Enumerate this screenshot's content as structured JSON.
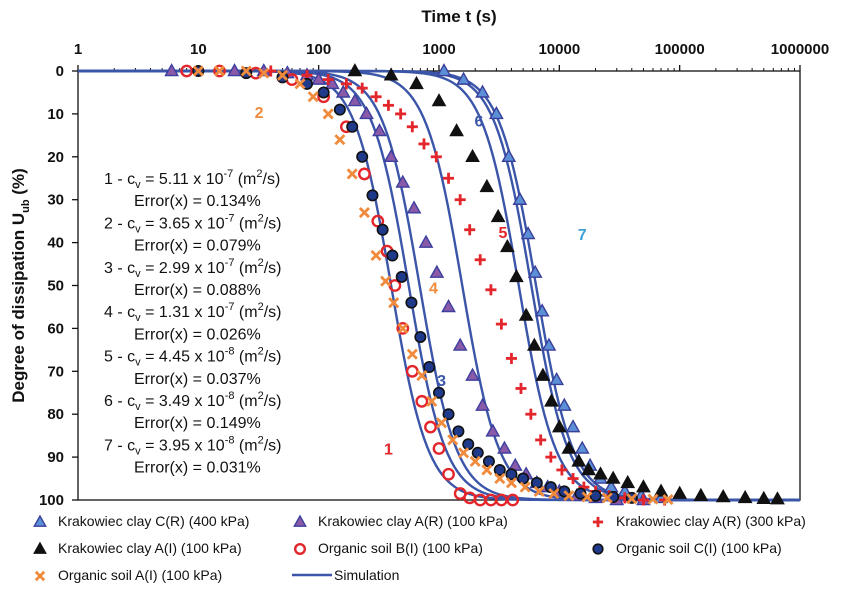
{
  "chart_data": {
    "type": "scatter",
    "title": "",
    "xlabel": "Time t (s)",
    "ylabel_main": "Degree of dissipation U",
    "ylabel_sub": "ub",
    "ylabel_unit": " (%)",
    "x_scale": "log",
    "xlim": [
      1,
      1000000
    ],
    "ylim": [
      0,
      100
    ],
    "y_inverted": true,
    "x_ticks": [
      1,
      10,
      100,
      1000,
      10000,
      100000,
      1000000
    ],
    "x_tick_labels": [
      "1",
      "10",
      "100",
      "1000",
      "10000",
      "100000",
      "1000000"
    ],
    "y_ticks": [
      0,
      10,
      20,
      30,
      40,
      50,
      60,
      70,
      80,
      90,
      100
    ],
    "y_tick_labels": [
      "0",
      "10",
      "20",
      "30",
      "40",
      "50",
      "60",
      "70",
      "80",
      "90",
      "100"
    ],
    "grid": false,
    "legend_position": "bottom",
    "series": [
      {
        "name": "Krakowiec clay C(R) (400 kPa)",
        "marker": "triangle",
        "fill": "#5b8fd6",
        "stroke": "#3a3f9a",
        "x": [
          1100,
          1600,
          2300,
          3000,
          3800,
          4700,
          5500,
          6300,
          7200,
          8200,
          9500,
          11000,
          13000,
          15500,
          18000,
          22000,
          27000,
          35000,
          48000,
          70000
        ],
        "y": [
          0,
          2,
          5,
          10,
          20,
          30,
          38,
          47,
          56,
          64,
          72,
          78,
          83,
          88,
          92,
          95,
          97,
          98,
          99,
          99.5
        ]
      },
      {
        "name": "Krakowiec clay A(R) (100 kPa)",
        "marker": "triangle",
        "fill": "#8a5aa8",
        "stroke": "#3b3f9e",
        "x": [
          6,
          20,
          35,
          55,
          80,
          100,
          130,
          160,
          200,
          250,
          320,
          400,
          500,
          620,
          780,
          960,
          1200,
          1500,
          1900,
          2300,
          2800,
          3500,
          4300,
          5300,
          6500,
          8000,
          10000,
          14000,
          20000,
          30000,
          50000
        ],
        "y": [
          0,
          0,
          0,
          0.5,
          1,
          2,
          3,
          5,
          7,
          10,
          14,
          20,
          26,
          32,
          40,
          47,
          55,
          64,
          71,
          78,
          84,
          88,
          92,
          94,
          96,
          97,
          98,
          99,
          99.5,
          100,
          100
        ]
      },
      {
        "name": "Krakowiec clay A(R) (300 kPa)",
        "marker": "plus",
        "fill": "#e3262b",
        "stroke": "#e3262b",
        "x": [
          40,
          80,
          120,
          170,
          230,
          300,
          380,
          480,
          600,
          750,
          950,
          1200,
          1500,
          1800,
          2200,
          2700,
          3300,
          4000,
          4800,
          5800,
          7000,
          8500,
          10500,
          13000,
          16000,
          20000,
          26000,
          35000,
          50000,
          75000
        ],
        "y": [
          0,
          1,
          2,
          3,
          4,
          6,
          8,
          10,
          13,
          17,
          20,
          25,
          30,
          37,
          44,
          51,
          59,
          67,
          74,
          80,
          86,
          90,
          93,
          95,
          97,
          98,
          99,
          99.5,
          100,
          100
        ]
      },
      {
        "name": "Krakowiec clay A(I) (100 kPa)",
        "marker": "triangle",
        "fill": "#111111",
        "stroke": "#111111",
        "x": [
          200,
          400,
          650,
          1000,
          1400,
          1900,
          2500,
          3100,
          3700,
          4400,
          5300,
          6200,
          7300,
          8600,
          10000,
          12000,
          14500,
          17500,
          22000,
          28000,
          37000,
          50000,
          70000,
          100000,
          150000,
          230000,
          350000,
          500000,
          650000
        ],
        "y": [
          0,
          1,
          3,
          7,
          14,
          20,
          27,
          34,
          41,
          48,
          57,
          64,
          71,
          77,
          83,
          88,
          91,
          93,
          94,
          95,
          96,
          97,
          98,
          98.5,
          99,
          99.3,
          99.5,
          99.7,
          99.8
        ]
      },
      {
        "name": "Organic soil B(I) (100 kPa)",
        "marker": "circle",
        "fill": "none",
        "stroke": "#e3262b",
        "x": [
          8,
          15,
          30,
          60,
          110,
          170,
          240,
          310,
          370,
          430,
          500,
          600,
          720,
          850,
          1000,
          1200,
          1500,
          1800,
          2200,
          2700,
          3300,
          4100
        ],
        "y": [
          0,
          0,
          0.5,
          2,
          6,
          13,
          24,
          35,
          42,
          50,
          60,
          70,
          77,
          83,
          88,
          94,
          98.5,
          99.5,
          100,
          100,
          100,
          100
        ]
      },
      {
        "name": "Organic soil C(I) (100 kPa)",
        "marker": "circle",
        "fill": "#1f3a8a",
        "stroke": "#111111",
        "x": [
          10,
          25,
          50,
          80,
          110,
          150,
          190,
          230,
          280,
          340,
          410,
          490,
          590,
          700,
          830,
          1000,
          1200,
          1450,
          1750,
          2100,
          2600,
          3200,
          4000,
          5000,
          6500,
          8500,
          11000,
          15000,
          20000,
          28000,
          40000
        ],
        "y": [
          0,
          0.5,
          1.5,
          3,
          5,
          9,
          13,
          20,
          29,
          37,
          43,
          48,
          54,
          62,
          69,
          75,
          80,
          84,
          87,
          89,
          91,
          93,
          94,
          95,
          96,
          97,
          98,
          98.5,
          99,
          99.3,
          99.5
        ]
      },
      {
        "name": "Organic soil A(I) (100 kPa)",
        "marker": "x",
        "fill": "#f08a3c",
        "stroke": "#f08a3c",
        "x": [
          10,
          15,
          25,
          35,
          50,
          70,
          90,
          120,
          150,
          190,
          240,
          300,
          360,
          420,
          500,
          600,
          720,
          870,
          1050,
          1300,
          1600,
          2000,
          2500,
          3200,
          4000,
          5200,
          6800,
          9000,
          12000,
          17000,
          25000,
          40000,
          60000,
          80000
        ],
        "y": [
          0,
          0,
          0,
          0.5,
          1,
          3,
          6,
          10,
          16,
          24,
          33,
          43,
          49,
          54,
          60,
          66,
          71,
          77,
          82,
          86,
          89,
          91,
          93,
          95,
          96,
          97,
          98,
          98.5,
          99,
          99.3,
          99.5,
          99.7,
          99.8,
          99.9
        ]
      }
    ],
    "simulation": {
      "name": "Simulation",
      "color": "#3b55a8",
      "curves": [
        {
          "label": "1",
          "t50": 400,
          "k": 1.35
        },
        {
          "label": "2",
          "t50": 560,
          "k": 1.35
        },
        {
          "label": "3",
          "t50": 690,
          "k": 1.35
        },
        {
          "label": "4",
          "t50": 1560,
          "k": 1.35
        },
        {
          "label": "5",
          "t50": 4600,
          "k": 1.35
        },
        {
          "label": "6",
          "t50": 5850,
          "k": 1.35
        },
        {
          "label": "7",
          "t50": 6400,
          "k": 1.35
        }
      ]
    },
    "curve_labels": [
      {
        "text": "1",
        "color": "#e3262b"
      },
      {
        "text": "2",
        "color": "#f08a3c"
      },
      {
        "text": "3",
        "color": "#3b55a8"
      },
      {
        "text": "4",
        "color": "#f08a3c"
      },
      {
        "text": "5",
        "color": "#e3262b"
      },
      {
        "text": "6",
        "color": "#3b55a8"
      },
      {
        "text": "7",
        "color": "#3aa0d8"
      }
    ],
    "annotations": [
      {
        "id": "1",
        "cv_mantissa": "5.11",
        "cv_exp": "-7"
      },
      {
        "id": "2",
        "cv_mantissa": "3.65",
        "cv_exp": "-7",
        "error": "Error(x) = 0.079%"
      },
      {
        "id": "3",
        "cv_mantissa": "2.99",
        "cv_exp": "-7",
        "error": "Error(x) = 0.088%"
      },
      {
        "id": "4",
        "cv_mantissa": "1.31",
        "cv_exp": "-7",
        "error": "Error(x) = 0.026%"
      },
      {
        "id": "5",
        "cv_mantissa": "4.45",
        "cv_exp": "-8",
        "error": "Error(x) = 0.037%"
      },
      {
        "id": "6",
        "cv_mantissa": "3.49",
        "cv_exp": "-8",
        "error": "Error(x) = 0.149%"
      },
      {
        "id": "7",
        "cv_mantissa": "3.95",
        "cv_exp": "-8",
        "error": "Error(x) = 0.031%"
      }
    ],
    "annotation_first_error": "Error(x) = 0.134%",
    "annotation_parts": {
      "c": "c",
      "v": "v",
      "sep": " - ",
      "eq": " = ",
      "times": " x 10",
      "unit_pre": " (m",
      "unit_exp": "2",
      "unit_post": "/s)"
    }
  }
}
